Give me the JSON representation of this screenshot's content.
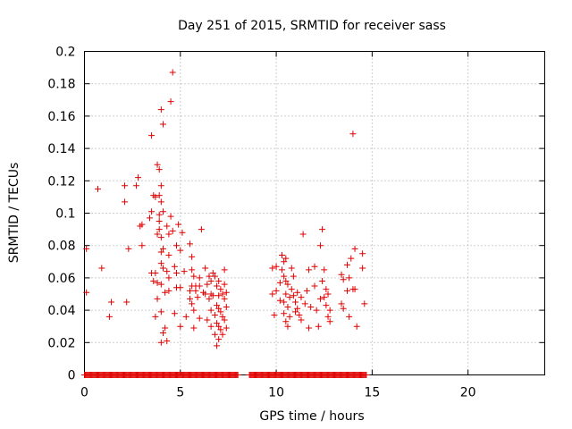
{
  "chart_data": {
    "type": "scatter",
    "title": "Day 251 of 2015, SRMTID for receiver sass",
    "xlabel": "GPS time / hours",
    "ylabel": "SRMTID / TECUs",
    "xlim": [
      0,
      24
    ],
    "ylim": [
      0,
      0.2
    ],
    "x_ticks": [
      0,
      5,
      10,
      15,
      20
    ],
    "x_tick_labels": [
      "0",
      "5",
      "10",
      "15",
      "20"
    ],
    "y_ticks": [
      0,
      0.02,
      0.04,
      0.06,
      0.08,
      0.1,
      0.12,
      0.14,
      0.16,
      0.18,
      0.2
    ],
    "y_tick_labels": [
      "0",
      "0.02",
      "0.04",
      "0.06",
      "0.08",
      "0.1",
      "0.12",
      "0.14",
      "0.16",
      "0.18",
      "0.2"
    ],
    "grid": true,
    "marker": "+",
    "series": [
      {
        "name": "SRMTID",
        "color": "#e00000",
        "points": [
          [
            0.1,
            0.078
          ],
          [
            0.1,
            0.051
          ],
          [
            0.7,
            0.115
          ],
          [
            0.9,
            0.066
          ],
          [
            1.3,
            0.036
          ],
          [
            1.4,
            0.045
          ],
          [
            2.1,
            0.107
          ],
          [
            2.1,
            0.117
          ],
          [
            2.2,
            0.045
          ],
          [
            2.3,
            0.078
          ],
          [
            2.7,
            0.117
          ],
          [
            2.8,
            0.122
          ],
          [
            2.9,
            0.092
          ],
          [
            3.0,
            0.093
          ],
          [
            3.0,
            0.08
          ],
          [
            3.4,
            0.097
          ],
          [
            3.5,
            0.101
          ],
          [
            3.5,
            0.063
          ],
          [
            3.5,
            0.148
          ],
          [
            3.6,
            0.111
          ],
          [
            3.6,
            0.058
          ],
          [
            3.7,
            0.11
          ],
          [
            3.7,
            0.063
          ],
          [
            3.7,
            0.036
          ],
          [
            3.8,
            0.087
          ],
          [
            3.8,
            0.13
          ],
          [
            3.8,
            0.057
          ],
          [
            3.8,
            0.047
          ],
          [
            3.9,
            0.127
          ],
          [
            3.9,
            0.099
          ],
          [
            3.9,
            0.095
          ],
          [
            3.9,
            0.09
          ],
          [
            3.9,
            0.111
          ],
          [
            4.0,
            0.117
          ],
          [
            4.0,
            0.107
          ],
          [
            4.0,
            0.085
          ],
          [
            4.0,
            0.076
          ],
          [
            4.0,
            0.069
          ],
          [
            4.0,
            0.056
          ],
          [
            4.0,
            0.164
          ],
          [
            4.0,
            0.02
          ],
          [
            4.0,
            0.039
          ],
          [
            4.1,
            0.155
          ],
          [
            4.1,
            0.101
          ],
          [
            4.1,
            0.078
          ],
          [
            4.1,
            0.066
          ],
          [
            4.1,
            0.026
          ],
          [
            4.2,
            0.029
          ],
          [
            4.2,
            0.051
          ],
          [
            4.3,
            0.092
          ],
          [
            4.3,
            0.021
          ],
          [
            4.3,
            0.064
          ],
          [
            4.4,
            0.087
          ],
          [
            4.4,
            0.074
          ],
          [
            4.4,
            0.06
          ],
          [
            4.4,
            0.052
          ],
          [
            4.5,
            0.169
          ],
          [
            4.5,
            0.098
          ],
          [
            4.6,
            0.187
          ],
          [
            4.6,
            0.089
          ],
          [
            4.7,
            0.067
          ],
          [
            4.7,
            0.038
          ],
          [
            4.8,
            0.08
          ],
          [
            4.8,
            0.063
          ],
          [
            4.8,
            0.054
          ],
          [
            4.9,
            0.093
          ],
          [
            5.0,
            0.077
          ],
          [
            5.0,
            0.054
          ],
          [
            5.0,
            0.03
          ],
          [
            5.1,
            0.088
          ],
          [
            5.2,
            0.064
          ],
          [
            5.3,
            0.036
          ],
          [
            5.5,
            0.081
          ],
          [
            5.5,
            0.052
          ],
          [
            5.5,
            0.047
          ],
          [
            5.6,
            0.073
          ],
          [
            5.6,
            0.065
          ],
          [
            5.6,
            0.055
          ],
          [
            5.6,
            0.044
          ],
          [
            5.7,
            0.061
          ],
          [
            5.7,
            0.04
          ],
          [
            5.7,
            0.029
          ],
          [
            5.8,
            0.055
          ],
          [
            5.8,
            0.052
          ],
          [
            5.9,
            0.048
          ],
          [
            6.0,
            0.06
          ],
          [
            6.0,
            0.055
          ],
          [
            6.0,
            0.035
          ],
          [
            6.1,
            0.09
          ],
          [
            6.2,
            0.051
          ],
          [
            6.3,
            0.066
          ],
          [
            6.3,
            0.05
          ],
          [
            6.4,
            0.056
          ],
          [
            6.4,
            0.034
          ],
          [
            6.5,
            0.061
          ],
          [
            6.5,
            0.047
          ],
          [
            6.6,
            0.058
          ],
          [
            6.6,
            0.05
          ],
          [
            6.6,
            0.04
          ],
          [
            6.6,
            0.03
          ],
          [
            6.7,
            0.063
          ],
          [
            6.7,
            0.049
          ],
          [
            6.8,
            0.061
          ],
          [
            6.8,
            0.037
          ],
          [
            6.8,
            0.025
          ],
          [
            6.9,
            0.055
          ],
          [
            6.9,
            0.043
          ],
          [
            6.9,
            0.032
          ],
          [
            6.9,
            0.018
          ],
          [
            7.0,
            0.058
          ],
          [
            7.0,
            0.049
          ],
          [
            7.0,
            0.041
          ],
          [
            7.0,
            0.03
          ],
          [
            7.0,
            0.022
          ],
          [
            7.1,
            0.053
          ],
          [
            7.1,
            0.039
          ],
          [
            7.1,
            0.028
          ],
          [
            7.2,
            0.05
          ],
          [
            7.2,
            0.036
          ],
          [
            7.2,
            0.025
          ],
          [
            7.3,
            0.065
          ],
          [
            7.3,
            0.056
          ],
          [
            7.3,
            0.047
          ],
          [
            7.3,
            0.034
          ],
          [
            7.4,
            0.051
          ],
          [
            7.4,
            0.042
          ],
          [
            7.4,
            0.029
          ],
          [
            9.8,
            0.066
          ],
          [
            9.8,
            0.05
          ],
          [
            9.9,
            0.037
          ],
          [
            10.0,
            0.067
          ],
          [
            10.0,
            0.052
          ],
          [
            10.2,
            0.057
          ],
          [
            10.2,
            0.046
          ],
          [
            10.3,
            0.074
          ],
          [
            10.3,
            0.065
          ],
          [
            10.4,
            0.07
          ],
          [
            10.4,
            0.061
          ],
          [
            10.4,
            0.045
          ],
          [
            10.4,
            0.038
          ],
          [
            10.5,
            0.072
          ],
          [
            10.5,
            0.058
          ],
          [
            10.5,
            0.05
          ],
          [
            10.5,
            0.033
          ],
          [
            10.6,
            0.056
          ],
          [
            10.6,
            0.042
          ],
          [
            10.6,
            0.03
          ],
          [
            10.7,
            0.048
          ],
          [
            10.7,
            0.036
          ],
          [
            10.8,
            0.066
          ],
          [
            10.8,
            0.053
          ],
          [
            10.9,
            0.061
          ],
          [
            10.9,
            0.049
          ],
          [
            11.0,
            0.045
          ],
          [
            11.0,
            0.039
          ],
          [
            11.1,
            0.051
          ],
          [
            11.1,
            0.041
          ],
          [
            11.2,
            0.037
          ],
          [
            11.3,
            0.048
          ],
          [
            11.3,
            0.034
          ],
          [
            11.4,
            0.087
          ],
          [
            11.5,
            0.044
          ],
          [
            11.6,
            0.052
          ],
          [
            11.7,
            0.065
          ],
          [
            11.7,
            0.029
          ],
          [
            11.8,
            0.042
          ],
          [
            12.0,
            0.067
          ],
          [
            12.0,
            0.055
          ],
          [
            12.1,
            0.04
          ],
          [
            12.2,
            0.03
          ],
          [
            12.3,
            0.047
          ],
          [
            12.3,
            0.08
          ],
          [
            12.4,
            0.09
          ],
          [
            12.4,
            0.058
          ],
          [
            12.5,
            0.065
          ],
          [
            12.5,
            0.048
          ],
          [
            12.6,
            0.053
          ],
          [
            12.6,
            0.043
          ],
          [
            12.7,
            0.05
          ],
          [
            12.7,
            0.036
          ],
          [
            12.8,
            0.04
          ],
          [
            12.8,
            0.033
          ],
          [
            13.4,
            0.062
          ],
          [
            13.4,
            0.044
          ],
          [
            13.5,
            0.059
          ],
          [
            13.5,
            0.041
          ],
          [
            13.7,
            0.068
          ],
          [
            13.7,
            0.052
          ],
          [
            13.8,
            0.06
          ],
          [
            13.8,
            0.036
          ],
          [
            13.9,
            0.072
          ],
          [
            14.0,
            0.149
          ],
          [
            14.0,
            0.053
          ],
          [
            14.1,
            0.053
          ],
          [
            14.1,
            0.078
          ],
          [
            14.2,
            0.03
          ],
          [
            14.5,
            0.075
          ],
          [
            14.5,
            0.066
          ],
          [
            14.6,
            0.044
          ]
        ]
      }
    ],
    "zero_band": [
      {
        "from": 0.0,
        "to": 8.0
      },
      {
        "from": 8.6,
        "to": 14.7
      }
    ]
  }
}
